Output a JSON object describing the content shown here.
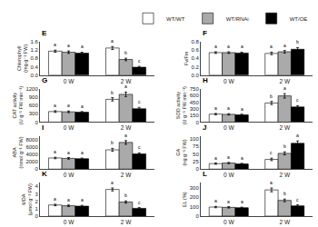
{
  "chart_data": [
    {
      "type": "bar",
      "title": "E",
      "categories": [
        "0 W",
        "2 W"
      ],
      "ylabel": "Chlorophyll\n(mg g⁻¹ FW)",
      "series": [
        {
          "name": "WT/WT",
          "color": "white",
          "values": [
            1.15,
            1.3
          ],
          "errors": [
            0.05,
            0.07
          ],
          "letters": [
            "a",
            "a"
          ]
        },
        {
          "name": "WT/RNAi",
          "color": "#aaaaaa",
          "values": [
            1.1,
            0.75
          ],
          "errors": [
            0.06,
            0.06
          ],
          "letters": [
            "a",
            "b"
          ]
        },
        {
          "name": "WT/OE",
          "color": "black",
          "values": [
            1.05,
            0.38
          ],
          "errors": [
            0.05,
            0.04
          ],
          "letters": [
            "a",
            "c"
          ]
        }
      ],
      "ylim": [
        0,
        1.6
      ],
      "yticks": [
        {
          "value": 0,
          "label": "0.0"
        },
        0.4,
        0.8,
        1.2,
        1.6
      ],
      "grid": false
    },
    {
      "type": "bar",
      "title": "F",
      "categories": [
        "0 W",
        "2 W"
      ],
      "ylabel": "Fv/Fm",
      "series": [
        {
          "name": "WT/WT",
          "color": "white",
          "values": [
            0.54,
            0.52
          ],
          "errors": [
            0.02,
            0.03
          ],
          "letters": [
            "a",
            "a"
          ]
        },
        {
          "name": "WT/RNAi",
          "color": "#aaaaaa",
          "values": [
            0.54,
            0.56
          ],
          "errors": [
            0.02,
            0.03
          ],
          "letters": [
            "a",
            "a"
          ]
        },
        {
          "name": "WT/OE",
          "color": "black",
          "values": [
            0.53,
            0.62
          ],
          "errors": [
            0.02,
            0.04
          ],
          "letters": [
            "a",
            "b"
          ]
        }
      ],
      "ylim": [
        0,
        0.8
      ],
      "yticks": [
        {
          "value": 0,
          "label": "0.0"
        },
        0.2,
        0.4,
        0.6,
        0.8
      ],
      "grid": false,
      "legend": "upper right"
    },
    {
      "type": "bar",
      "title": "G",
      "categories": [
        "0 W",
        "2 W"
      ],
      "ylabel": "CAT activity\n(U g⁻¹ FW min⁻¹)",
      "series": [
        {
          "name": "WT/WT",
          "color": "white",
          "values": [
            380,
            820
          ],
          "errors": [
            30,
            60
          ],
          "letters": [
            "a",
            "b"
          ]
        },
        {
          "name": "WT/RNAi",
          "color": "#aaaaaa",
          "values": [
            370,
            1000
          ],
          "errors": [
            30,
            80
          ],
          "letters": [
            "a",
            "a"
          ]
        },
        {
          "name": "WT/OE",
          "color": "black",
          "values": [
            355,
            480
          ],
          "errors": [
            25,
            50
          ],
          "letters": [
            "a",
            "c"
          ]
        }
      ],
      "ylim": [
        0,
        1200
      ],
      "yticks": [
        0,
        300,
        600,
        900,
        1200
      ],
      "grid": false
    },
    {
      "type": "bar",
      "title": "H",
      "categories": [
        "0 W",
        "2 W"
      ],
      "ylabel": "SOD activity\n(U g⁻¹ FW min⁻¹)",
      "series": [
        {
          "name": "WT/WT",
          "color": "white",
          "values": [
            180,
            430
          ],
          "errors": [
            15,
            35
          ],
          "letters": [
            "a",
            "b"
          ]
        },
        {
          "name": "WT/RNAi",
          "color": "#aaaaaa",
          "values": [
            175,
            590
          ],
          "errors": [
            15,
            50
          ],
          "letters": [
            "a",
            "a"
          ]
        },
        {
          "name": "WT/OE",
          "color": "black",
          "values": [
            165,
            340
          ],
          "errors": [
            12,
            30
          ],
          "letters": [
            "a",
            "c"
          ]
        }
      ],
      "ylim": [
        0,
        750
      ],
      "yticks": [
        0,
        150,
        300,
        450,
        600,
        750
      ],
      "grid": false
    },
    {
      "type": "bar",
      "title": "I",
      "categories": [
        "0 W",
        "2 W"
      ],
      "ylabel": "ABA\n(nmol g⁻¹ FW)",
      "series": [
        {
          "name": "WT/WT",
          "color": "white",
          "values": [
            3000,
            5200
          ],
          "errors": [
            200,
            400
          ],
          "letters": [
            "a",
            "b"
          ]
        },
        {
          "name": "WT/RNAi",
          "color": "#aaaaaa",
          "values": [
            2900,
            7200
          ],
          "errors": [
            200,
            500
          ],
          "letters": [
            "a",
            "a"
          ]
        },
        {
          "name": "WT/OE",
          "color": "black",
          "values": [
            2800,
            4100
          ],
          "errors": [
            180,
            300
          ],
          "letters": [
            "a",
            "c"
          ]
        }
      ],
      "ylim": [
        0,
        9000
      ],
      "yticks": [
        0,
        2000,
        4000,
        6000,
        8000
      ],
      "grid": false
    },
    {
      "type": "bar",
      "title": "J",
      "categories": [
        "0 W",
        "2 W"
      ],
      "ylabel": "GA\n(ng g⁻¹ FW)",
      "series": [
        {
          "name": "WT/WT",
          "color": "white",
          "values": [
            18,
            32
          ],
          "errors": [
            2,
            4
          ],
          "letters": [
            "a",
            "c"
          ]
        },
        {
          "name": "WT/RNAi",
          "color": "#aaaaaa",
          "values": [
            20,
            52
          ],
          "errors": [
            2,
            5
          ],
          "letters": [
            "a",
            "b"
          ]
        },
        {
          "name": "WT/OE",
          "color": "black",
          "values": [
            17,
            85
          ],
          "errors": [
            2,
            8
          ],
          "letters": [
            "a",
            "a"
          ]
        }
      ],
      "ylim": [
        0,
        110
      ],
      "yticks": [
        0,
        25,
        50,
        75,
        100
      ],
      "grid": false
    },
    {
      "type": "bar",
      "title": "K",
      "categories": [
        "0 W",
        "2 W"
      ],
      "ylabel": "MDA\n(μmol g⁻¹ FW)",
      "series": [
        {
          "name": "WT/WT",
          "color": "white",
          "values": [
            1.5,
            3.6
          ],
          "errors": [
            0.1,
            0.2
          ],
          "letters": [
            "a",
            "a"
          ]
        },
        {
          "name": "WT/RNAi",
          "color": "#aaaaaa",
          "values": [
            1.4,
            1.9
          ],
          "errors": [
            0.1,
            0.15
          ],
          "letters": [
            "a",
            "b"
          ]
        },
        {
          "name": "WT/OE",
          "color": "black",
          "values": [
            1.35,
            1.05
          ],
          "errors": [
            0.1,
            0.1
          ],
          "letters": [
            "a",
            "c"
          ]
        }
      ],
      "ylim": [
        0,
        4.5
      ],
      "yticks": [
        0,
        1,
        2,
        3,
        4
      ],
      "grid": false
    },
    {
      "type": "bar",
      "title": "L",
      "categories": [
        "0 W",
        "2 W"
      ],
      "ylabel": "EL (%)",
      "series": [
        {
          "name": "WT/WT",
          "color": "white",
          "values": [
            95,
            275
          ],
          "errors": [
            7,
            20
          ],
          "letters": [
            "a",
            "a"
          ]
        },
        {
          "name": "WT/RNAi",
          "color": "#aaaaaa",
          "values": [
            92,
            165
          ],
          "errors": [
            7,
            14
          ],
          "letters": [
            "a",
            "b"
          ]
        },
        {
          "name": "WT/OE",
          "color": "black",
          "values": [
            88,
            108
          ],
          "errors": [
            6,
            10
          ],
          "letters": [
            "a",
            "c"
          ]
        }
      ],
      "ylim": [
        0,
        350
      ],
      "yticks": [
        0,
        100,
        200,
        300
      ],
      "grid": false
    }
  ]
}
